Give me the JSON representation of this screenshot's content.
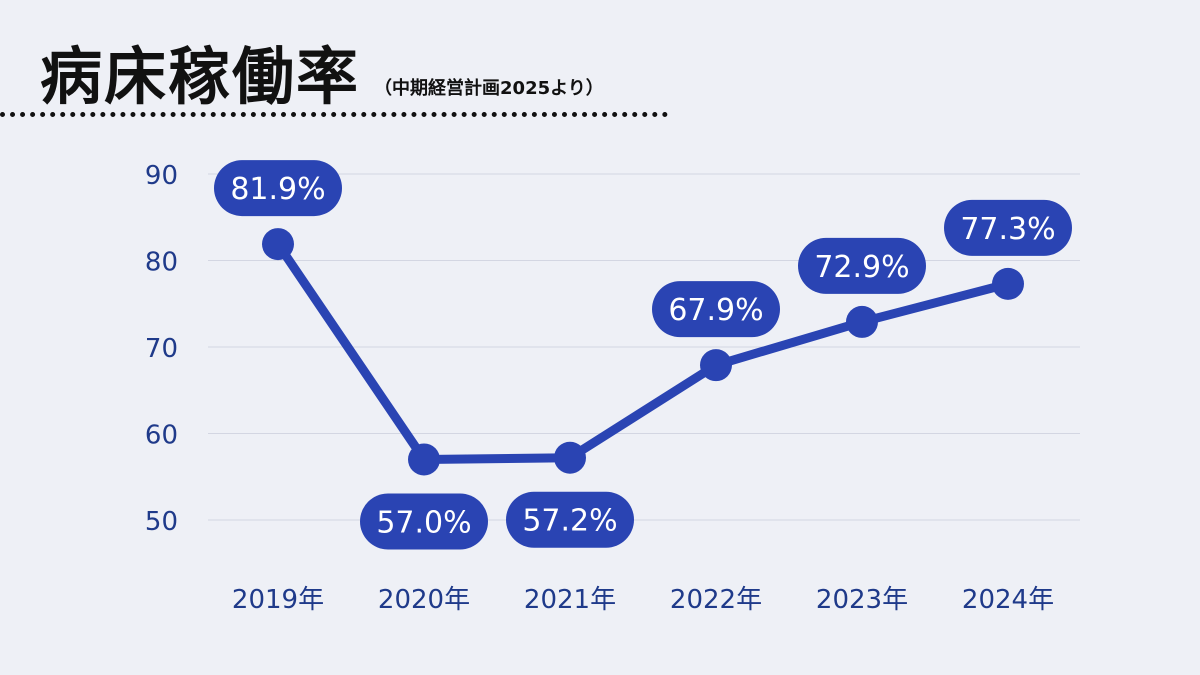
{
  "header": {
    "title": "病床稼働率",
    "subtitle": "（中期経営計画2025より）"
  },
  "colors": {
    "background": "#eef0f6",
    "series": "#2a44b3",
    "label_bg": "#2a44b3",
    "label_text": "#ffffff",
    "axis_text": "#1f3a8a",
    "grid": "#d3d6e2"
  },
  "chart_data": {
    "type": "line",
    "title": "病床稼働率",
    "subtitle": "（中期経営計画2025より）",
    "categories": [
      "2019年",
      "2020年",
      "2021年",
      "2022年",
      "2023年",
      "2024年"
    ],
    "series": [
      {
        "values": [
          81.9,
          57.0,
          57.2,
          67.9,
          72.9,
          77.3
        ],
        "labels": [
          "81.9%",
          "57.0%",
          "57.2%",
          "67.9%",
          "72.9%",
          "77.3%"
        ],
        "label_positions": [
          "above",
          "below",
          "below",
          "above",
          "above",
          "above"
        ]
      }
    ],
    "yticks": [
      50,
      60,
      70,
      80,
      90
    ],
    "ylim": [
      50,
      90
    ],
    "grid": true,
    "legend": false,
    "xlabel": "",
    "ylabel": ""
  }
}
